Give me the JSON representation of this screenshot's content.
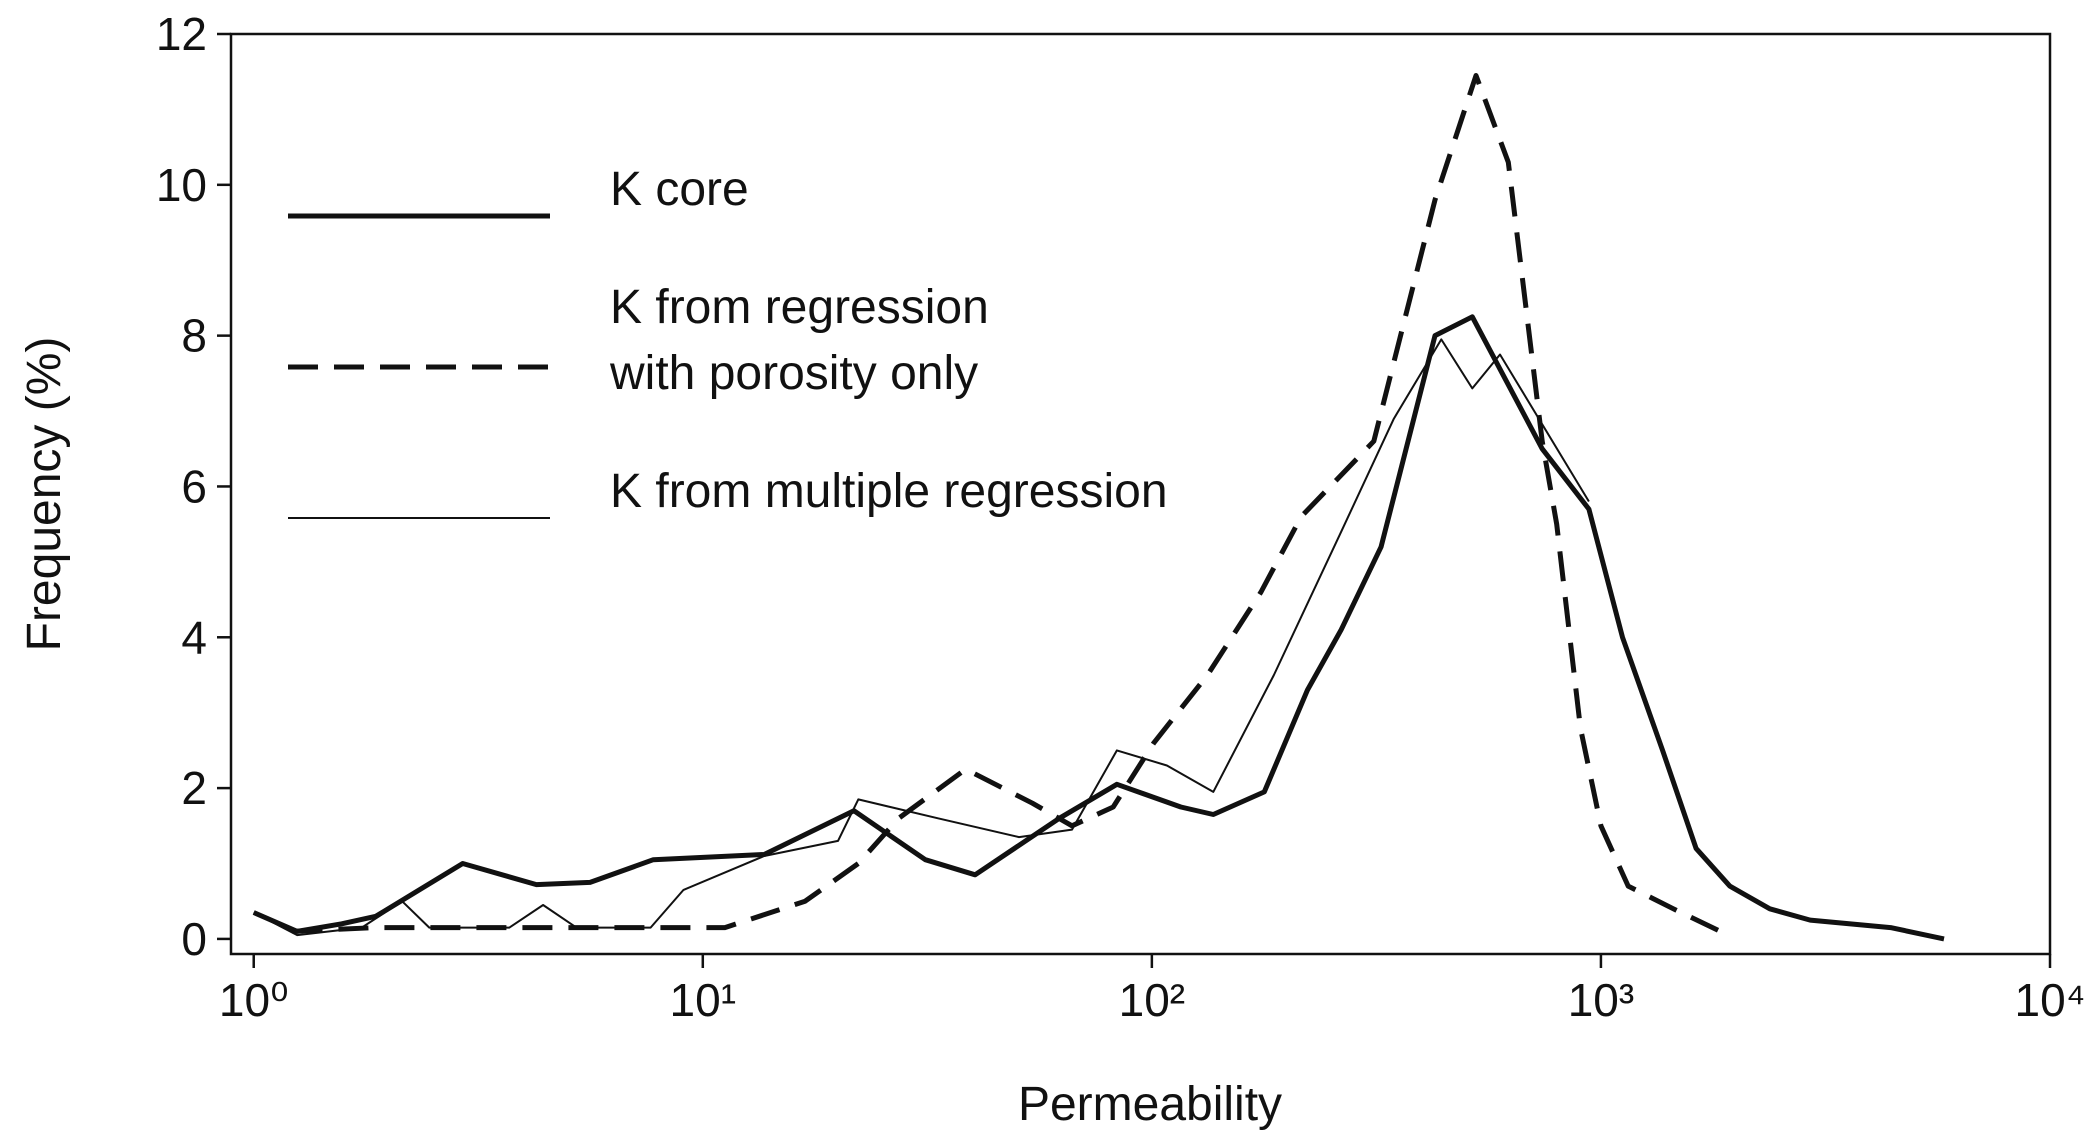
{
  "chart_data": {
    "type": "line",
    "x_label": "Permeability",
    "y_label": "Frequency (%)",
    "xscale": "log",
    "xlim": [
      0.89,
      10000
    ],
    "xticks": [
      {
        "value": 1,
        "label": "10⁰"
      },
      {
        "value": 10,
        "label": "10¹"
      },
      {
        "value": 100,
        "label": "10²"
      },
      {
        "value": 1000,
        "label": "10³"
      },
      {
        "value": 10000,
        "label": "10⁴"
      }
    ],
    "ylim": [
      -0.2,
      12
    ],
    "yticks": [
      0,
      2,
      4,
      6,
      8,
      10,
      12
    ],
    "legend": "upper left",
    "series": [
      {
        "name": "K core",
        "color": "#111111",
        "line_style": "solid",
        "line_width": 5,
        "x": [
          1,
          1.25,
          1.57,
          1.87,
          2.92,
          4.26,
          5.61,
          7.76,
          13.7,
          21.7,
          31.3,
          40.4,
          62.2,
          83.6,
          116,
          137,
          178,
          222,
          264,
          324,
          427,
          517,
          740,
          940,
          1117,
          1372,
          1629,
          1936,
          2377,
          2924,
          4416,
          5808
        ],
        "values": [
          0.35,
          0.1,
          0.2,
          0.3,
          1.0,
          0.72,
          0.75,
          1.05,
          1.12,
          1.7,
          1.05,
          0.85,
          1.6,
          2.05,
          1.75,
          1.65,
          1.95,
          3.3,
          4.1,
          5.2,
          8.0,
          8.25,
          6.5,
          5.7,
          4.0,
          2.5,
          1.2,
          0.7,
          0.4,
          0.25,
          0.15,
          0.0
        ]
      },
      {
        "name": "K from regression\nwith porosity only",
        "color": "#111111",
        "line_style": "dashed",
        "line_width": 5,
        "x": [
          1.22,
          1.87,
          8.5,
          11.2,
          16.9,
          22.2,
          27.3,
          38.5,
          54.2,
          66.4,
          82.0,
          101,
          133,
          175,
          215,
          312,
          427,
          527,
          622,
          740,
          797,
          900,
          1000,
          1150,
          1450,
          1845
        ],
        "values": [
          0.1,
          0.15,
          0.15,
          0.15,
          0.5,
          1.0,
          1.6,
          2.25,
          1.8,
          1.5,
          1.75,
          2.6,
          3.5,
          4.6,
          5.6,
          6.6,
          9.8,
          11.45,
          10.3,
          6.6,
          5.5,
          2.8,
          1.5,
          0.7,
          0.4,
          0.1
        ]
      },
      {
        "name": "K from multiple regression",
        "color": "#111111",
        "line_style": "solid",
        "line_width": 2,
        "x": [
          1,
          1.25,
          1.74,
          2.14,
          2.46,
          3.71,
          4.41,
          5.23,
          7.65,
          9.06,
          13.7,
          20.0,
          22.2,
          33.4,
          50.6,
          66.4,
          83.6,
          108,
          137,
          187,
          264,
          346,
          441,
          517,
          596,
          940
        ],
        "values": [
          0.35,
          0.05,
          0.15,
          0.5,
          0.15,
          0.15,
          0.45,
          0.15,
          0.15,
          0.65,
          1.1,
          1.3,
          1.85,
          1.6,
          1.35,
          1.45,
          2.5,
          2.3,
          1.95,
          3.5,
          5.4,
          6.9,
          7.95,
          7.3,
          7.75,
          5.8
        ]
      }
    ]
  }
}
